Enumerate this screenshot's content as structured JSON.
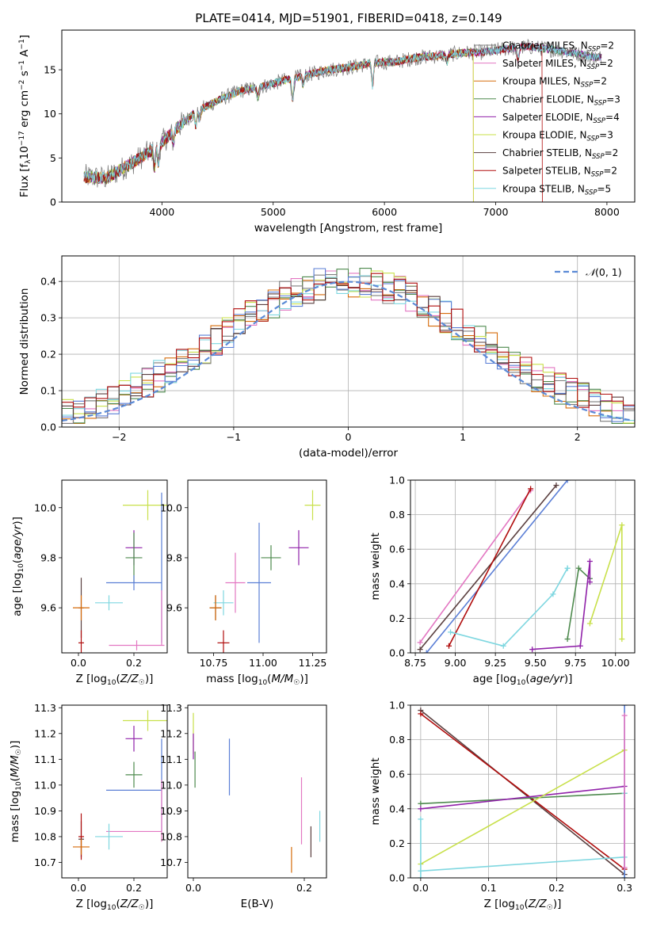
{
  "figure_title": "PLATE=0414, MJD=51901, FIBERID=0418, z=0.149",
  "colors": {
    "Chabrier MILES": "#7f7f7f",
    "Salpeter MILES": "#e377c2",
    "Kroupa MILES": "#d66b0a",
    "Chabrier ELODIE": "#4e8a4e",
    "Salpeter ELODIE": "#9021a9",
    "Kroupa ELODIE": "#c8e04a",
    "Chabrier STELIB": "#5a3f3f",
    "Salpeter STELIB": "#b00d0d",
    "Kroupa STELIB": "#7fd7e0",
    "extra_blue": "#5b7fd6",
    "normal_curve": "#5b8ad6"
  },
  "chart_data": [
    {
      "id": "spectrum",
      "type": "line",
      "xlabel": "wavelength [Angstrom, rest frame]",
      "ylabel": "Flux [f_λ10^-17 erg cm^-2 s^-1 A^-1]",
      "xlim": [
        3100,
        8250
      ],
      "ylim": [
        0,
        19.5
      ],
      "xticks": [
        4000,
        5000,
        6000,
        7000,
        8000
      ],
      "yticks": [
        0,
        5,
        10,
        15
      ],
      "legend_position": "upper-right",
      "series": [
        {
          "name": "Chabrier MILES, N_SSP=2",
          "key": "Chabrier MILES"
        },
        {
          "name": "Salpeter MILES, N_SSP=2",
          "key": "Salpeter MILES"
        },
        {
          "name": "Kroupa MILES, N_SSP=2",
          "key": "Kroupa MILES"
        },
        {
          "name": "Chabrier ELODIE, N_SSP=3",
          "key": "Chabrier ELODIE"
        },
        {
          "name": "Salpeter ELODIE, N_SSP=4",
          "key": "Salpeter ELODIE"
        },
        {
          "name": "Kroupa ELODIE, N_SSP=3",
          "key": "Kroupa ELODIE"
        },
        {
          "name": "Chabrier STELIB, N_SSP=2",
          "key": "Chabrier STELIB"
        },
        {
          "name": "Salpeter STELIB, N_SSP=2",
          "key": "Salpeter STELIB"
        },
        {
          "name": "Kroupa STELIB, N_SSP=5",
          "key": "Kroupa STELIB"
        }
      ],
      "continuum_x": [
        3300,
        3500,
        3700,
        3900,
        4000,
        4100,
        4300,
        4500,
        4700,
        4900,
        5100,
        5300,
        5500,
        5700,
        5900,
        6100,
        6300,
        6500,
        6700,
        6900,
        7100,
        7300,
        7500,
        7700,
        7900
      ],
      "continuum_y": [
        2.9,
        2.7,
        4.2,
        5.8,
        6.8,
        8.0,
        10.2,
        11.5,
        12.6,
        13.1,
        13.8,
        14.4,
        15.0,
        15.3,
        15.8,
        15.9,
        16.4,
        16.6,
        16.9,
        17.0,
        17.4,
        17.6,
        17.3,
        16.9,
        16.4
      ],
      "model_cutoffs": [
        {
          "key": "Kroupa MILES",
          "x": 6800
        },
        {
          "key": "Kroupa ELODIE",
          "x": 6800
        },
        {
          "key": "Salpeter STELIB",
          "x": 7420
        }
      ]
    },
    {
      "id": "residuals",
      "type": "histogram",
      "xlabel": "(data-model)/error",
      "ylabel": "Normed distribution",
      "xlim": [
        -2.5,
        2.5
      ],
      "ylim": [
        0,
        0.47
      ],
      "xticks": [
        -2,
        -1,
        0,
        1,
        2
      ],
      "yticks": [
        0.0,
        0.1,
        0.2,
        0.3,
        0.4
      ],
      "grid": true,
      "legend_position": "upper-right",
      "reference_curve": {
        "name": "N(0,1)",
        "mean": 0,
        "sigma": 1
      },
      "bin_width": 0.1
    },
    {
      "id": "age_vs_Z",
      "type": "errorbar",
      "xlabel": "Z [log10(Z/Z☉)]",
      "ylabel": "age [log10(age/yr)]",
      "xlim": [
        -0.06,
        0.32
      ],
      "ylim": [
        9.42,
        10.11
      ],
      "xticks": [
        0.0,
        0.2
      ],
      "yticks": [
        9.6,
        9.8,
        10.0
      ],
      "points": [
        {
          "key": "Kroupa ELODIE",
          "x": 0.25,
          "y": 10.01,
          "xerr": 0.09,
          "yerr": 0.06
        },
        {
          "key": "Salpeter ELODIE",
          "x": 0.2,
          "y": 9.84,
          "xerr": 0.03,
          "yerr": 0.07
        },
        {
          "key": "Chabrier ELODIE",
          "x": 0.2,
          "y": 9.8,
          "xerr": 0.03,
          "yerr": 0.1
        },
        {
          "key": "extra_blue",
          "x": 0.2,
          "y": 9.7,
          "xerr": 0.1,
          "yerr": 0.03
        },
        {
          "key": "Kroupa STELIB",
          "x": 0.11,
          "y": 9.62,
          "xerr": 0.05,
          "yerr": 0.03
        },
        {
          "key": "Chabrier STELIB",
          "x": 0.01,
          "y": 9.6,
          "xerr": 0.01,
          "yerr": 0.12
        },
        {
          "key": "Kroupa MILES",
          "x": 0.01,
          "y": 9.6,
          "xerr": 0.03,
          "yerr": 0.05
        },
        {
          "key": "Salpeter STELIB",
          "x": 0.01,
          "y": 9.46,
          "xerr": 0.01,
          "yerr": 0.05
        },
        {
          "key": "Salpeter MILES",
          "x": 0.21,
          "y": 9.45,
          "xerr": 0.1,
          "yerr": 0.02
        },
        {
          "key": "extra_blue",
          "x": 0.3,
          "y": 9.76,
          "xerr": 0.0,
          "yerr": 0.3
        },
        {
          "key": "Salpeter MILES",
          "x": 0.3,
          "y": 9.56,
          "xerr": 0.0,
          "yerr": 0.11
        }
      ]
    },
    {
      "id": "age_vs_mass",
      "type": "errorbar",
      "xlabel": "mass [log10(M/M☉)]",
      "ylabel": "",
      "xlim": [
        10.62,
        11.32
      ],
      "ylim": [
        9.42,
        10.11
      ],
      "xticks": [
        10.75,
        11.0,
        11.25
      ],
      "yticks": [
        9.6,
        9.8,
        10.0
      ],
      "points": [
        {
          "key": "Kroupa ELODIE",
          "x": 11.25,
          "y": 10.01,
          "xerr": 0.04,
          "yerr": 0.06
        },
        {
          "key": "Salpeter ELODIE",
          "x": 11.18,
          "y": 9.84,
          "xerr": 0.05,
          "yerr": 0.07
        },
        {
          "key": "Chabrier ELODIE",
          "x": 11.04,
          "y": 9.8,
          "xerr": 0.05,
          "yerr": 0.05
        },
        {
          "key": "extra_blue",
          "x": 10.98,
          "y": 9.7,
          "xerr": 0.06,
          "yerr": 0.24
        },
        {
          "key": "Kroupa STELIB",
          "x": 10.8,
          "y": 9.62,
          "xerr": 0.05,
          "yerr": 0.05
        },
        {
          "key": "Chabrier STELIB",
          "x": 10.76,
          "y": 9.6,
          "xerr": 0.03,
          "yerr": 0.05
        },
        {
          "key": "Kroupa MILES",
          "x": 10.76,
          "y": 9.6,
          "xerr": 0.03,
          "yerr": 0.05
        },
        {
          "key": "Salpeter STELIB",
          "x": 10.8,
          "y": 9.46,
          "xerr": 0.03,
          "yerr": 0.05
        },
        {
          "key": "Salpeter MILES",
          "x": 10.86,
          "y": 9.7,
          "xerr": 0.05,
          "yerr": 0.12
        }
      ]
    },
    {
      "id": "weight_vs_age",
      "type": "line",
      "xlabel": "age [log10(age/yr)]",
      "ylabel": "mass weight",
      "xlim": [
        8.72,
        10.12
      ],
      "ylim": [
        0,
        1
      ],
      "xticks": [
        8.75,
        9.0,
        9.25,
        9.5,
        9.75,
        10.0
      ],
      "yticks": [
        0.0,
        0.2,
        0.4,
        0.6,
        0.8,
        1.0
      ],
      "grid": true,
      "series": [
        {
          "key": "Salpeter MILES",
          "x": [
            8.78,
            9.47
          ],
          "y": [
            0.06,
            0.94
          ]
        },
        {
          "key": "extra_blue",
          "x": [
            8.82,
            9.7
          ],
          "y": [
            0.0,
            1.0
          ]
        },
        {
          "key": "Chabrier STELIB",
          "x": [
            8.78,
            9.63
          ],
          "y": [
            0.02,
            0.97
          ]
        },
        {
          "key": "Salpeter STELIB",
          "x": [
            8.96,
            9.47
          ],
          "y": [
            0.04,
            0.95
          ]
        },
        {
          "key": "Kroupa STELIB",
          "x": [
            8.97,
            9.3,
            9.61,
            9.7,
            9.7
          ],
          "y": [
            0.12,
            0.04,
            0.34,
            0.49,
            0.49
          ]
        },
        {
          "key": "Chabrier ELODIE",
          "x": [
            9.7,
            9.77,
            9.84
          ],
          "y": [
            0.08,
            0.49,
            0.43
          ]
        },
        {
          "key": "Salpeter ELODIE",
          "x": [
            9.48,
            9.78,
            9.84,
            9.84
          ],
          "y": [
            0.02,
            0.04,
            0.53,
            0.41
          ]
        },
        {
          "key": "Kroupa ELODIE",
          "x": [
            9.84,
            10.04,
            10.04
          ],
          "y": [
            0.17,
            0.74,
            0.08
          ]
        }
      ]
    },
    {
      "id": "mass_vs_Z",
      "type": "errorbar",
      "xlabel": "Z [log10(Z/Z☉)]",
      "ylabel": "mass [log10(M/M☉)]",
      "xlim": [
        -0.06,
        0.32
      ],
      "ylim": [
        10.64,
        11.31
      ],
      "xticks": [
        0.0,
        0.2
      ],
      "yticks": [
        10.7,
        10.8,
        10.9,
        11.0,
        11.1,
        11.2,
        11.3
      ],
      "points": [
        {
          "key": "Kroupa ELODIE",
          "x": 0.25,
          "y": 11.25,
          "xerr": 0.09,
          "yerr": 0.04
        },
        {
          "key": "Salpeter ELODIE",
          "x": 0.2,
          "y": 11.18,
          "xerr": 0.03,
          "yerr": 0.05
        },
        {
          "key": "Chabrier ELODIE",
          "x": 0.2,
          "y": 11.04,
          "xerr": 0.03,
          "yerr": 0.05
        },
        {
          "key": "extra_blue",
          "x": 0.2,
          "y": 10.98,
          "xerr": 0.1,
          "yerr": 0.0
        },
        {
          "key": "Salpeter MILES",
          "x": 0.2,
          "y": 10.82,
          "xerr": 0.1,
          "yerr": 0.0
        },
        {
          "key": "Kroupa STELIB",
          "x": 0.11,
          "y": 10.8,
          "xerr": 0.05,
          "yerr": 0.05
        },
        {
          "key": "Chabrier STELIB",
          "x": 0.01,
          "y": 10.79,
          "xerr": 0.01,
          "yerr": 0.07
        },
        {
          "key": "Salpeter STELIB",
          "x": 0.01,
          "y": 10.8,
          "xerr": 0.01,
          "yerr": 0.09
        },
        {
          "key": "Kroupa MILES",
          "x": 0.01,
          "y": 10.76,
          "xerr": 0.03,
          "yerr": 0.03
        },
        {
          "key": "extra_blue",
          "x": 0.3,
          "y": 11.0,
          "xerr": 0.0,
          "yerr": 0.18
        },
        {
          "key": "Salpeter MILES",
          "x": 0.3,
          "y": 10.9,
          "xerr": 0.0,
          "yerr": 0.12
        }
      ]
    },
    {
      "id": "mass_vs_EBV",
      "type": "errorbar",
      "xlabel": "E(B-V)",
      "ylabel": "",
      "xlim": [
        -0.01,
        0.24
      ],
      "ylim": [
        10.64,
        11.31
      ],
      "xticks": [
        0.0,
        0.2
      ],
      "yticks": [
        10.7,
        10.8,
        10.9,
        11.0,
        11.1,
        11.2,
        11.3
      ],
      "points": [
        {
          "key": "Kroupa ELODIE",
          "x": 0.0,
          "y": 11.2,
          "xerr": 0.0,
          "yerr": 0.08
        },
        {
          "key": "Salpeter ELODIE",
          "x": 0.0,
          "y": 11.15,
          "xerr": 0.0,
          "yerr": 0.05
        },
        {
          "key": "Chabrier ELODIE",
          "x": 0.003,
          "y": 11.06,
          "xerr": 0.0,
          "yerr": 0.07
        },
        {
          "key": "extra_blue",
          "x": 0.065,
          "y": 11.07,
          "xerr": 0.0,
          "yerr": 0.11
        },
        {
          "key": "Kroupa MILES",
          "x": 0.177,
          "y": 10.71,
          "xerr": 0.0,
          "yerr": 0.05
        },
        {
          "key": "Salpeter MILES",
          "x": 0.195,
          "y": 10.9,
          "xerr": 0.0,
          "yerr": 0.13
        },
        {
          "key": "Chabrier STELIB",
          "x": 0.212,
          "y": 10.78,
          "xerr": 0.0,
          "yerr": 0.06
        },
        {
          "key": "Kroupa STELIB",
          "x": 0.228,
          "y": 10.84,
          "xerr": 0.0,
          "yerr": 0.06
        }
      ]
    },
    {
      "id": "weight_vs_Z",
      "type": "line",
      "xlabel": "Z [log10(Z/Z☉)]",
      "ylabel": "mass weight",
      "xlim": [
        -0.015,
        0.315
      ],
      "ylim": [
        0,
        1
      ],
      "xticks": [
        0.0,
        0.1,
        0.2,
        0.3
      ],
      "yticks": [
        0.0,
        0.2,
        0.4,
        0.6,
        0.8,
        1.0
      ],
      "grid": true,
      "series": [
        {
          "key": "Chabrier STELIB",
          "x": [
            0.0,
            0.3
          ],
          "y": [
            0.97,
            0.02
          ]
        },
        {
          "key": "Salpeter STELIB",
          "x": [
            0.0,
            0.3
          ],
          "y": [
            0.95,
            0.05
          ]
        },
        {
          "key": "Chabrier ELODIE",
          "x": [
            0.0,
            0.3
          ],
          "y": [
            0.43,
            0.49
          ]
        },
        {
          "key": "Salpeter ELODIE",
          "x": [
            0.0,
            0.3
          ],
          "y": [
            0.4,
            0.53
          ]
        },
        {
          "key": "Kroupa ELODIE",
          "x": [
            0.0,
            0.3
          ],
          "y": [
            0.08,
            0.74
          ]
        },
        {
          "key": "Kroupa STELIB",
          "x": [
            0.0,
            0.3
          ],
          "y": [
            0.04,
            0.12
          ]
        },
        {
          "key": "Kroupa STELIB",
          "x": [
            0.0,
            0.0
          ],
          "y": [
            0.34,
            0.0
          ]
        },
        {
          "key": "Kroupa STELIB",
          "x": [
            0.3,
            0.3
          ],
          "y": [
            0.0,
            0.49
          ]
        },
        {
          "key": "extra_blue",
          "x": [
            0.3,
            0.3
          ],
          "y": [
            0.0,
            1.0
          ]
        },
        {
          "key": "Salpeter MILES",
          "x": [
            0.3,
            0.3
          ],
          "y": [
            0.06,
            0.94
          ]
        }
      ]
    }
  ]
}
